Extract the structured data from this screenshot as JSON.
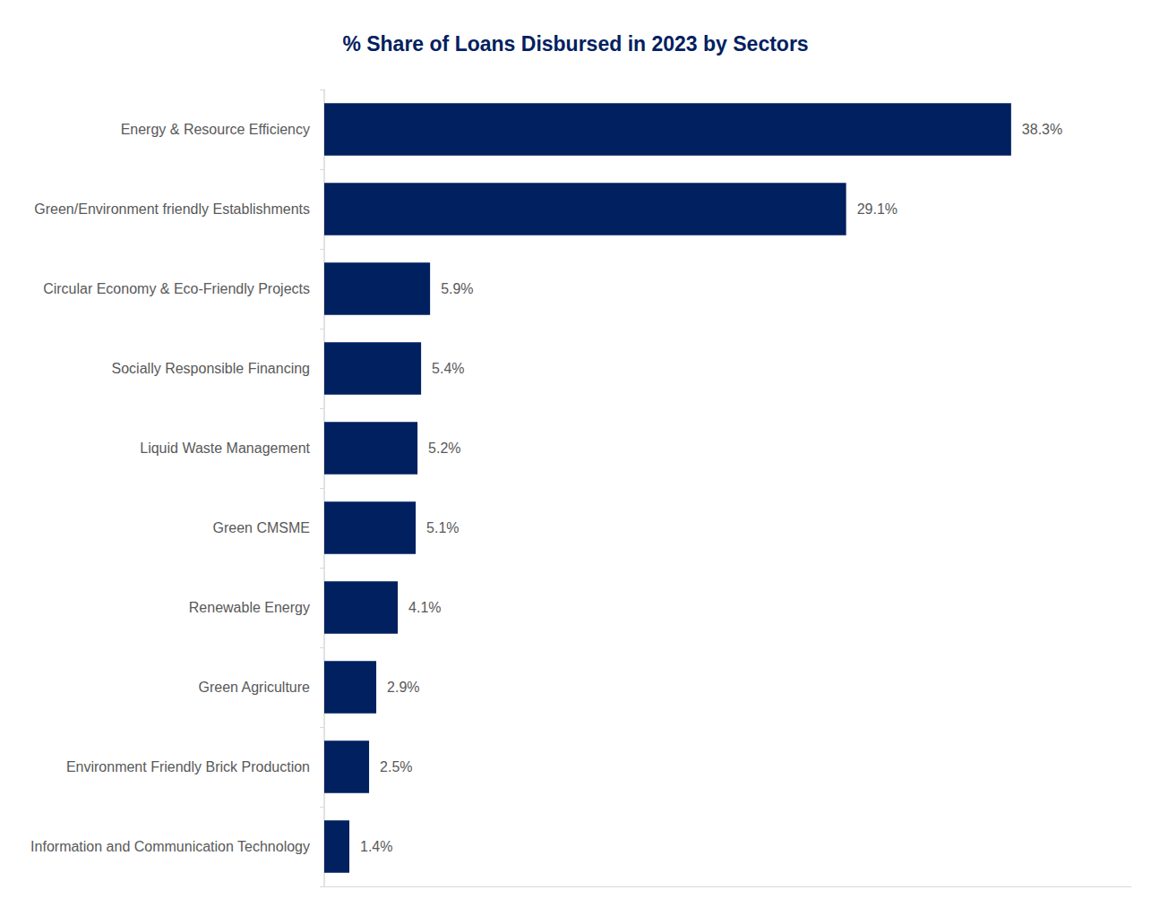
{
  "chart_data": {
    "type": "bar",
    "title": "% Share of Loans Disbursed in 2023 by Sectors",
    "orientation": "horizontal",
    "categories": [
      "Energy & Resource Efficiency",
      "Green/Environment friendly Establishments",
      "Circular Economy & Eco-Friendly Projects",
      "Socially Responsible Financing",
      "Liquid Waste Management",
      "Green CMSME",
      "Renewable Energy",
      "Green Agriculture",
      "Environment Friendly Brick Production",
      "Information and Communication Technology"
    ],
    "values": [
      38.3,
      29.1,
      5.9,
      5.4,
      5.2,
      5.1,
      4.1,
      2.9,
      2.5,
      1.4
    ],
    "value_labels": [
      "38.3%",
      "29.1%",
      "5.9%",
      "5.4%",
      "5.2%",
      "5.1%",
      "4.1%",
      "2.9%",
      "2.5%",
      "1.4%"
    ],
    "color": "#002060",
    "xlim": [
      0,
      45
    ],
    "grid": false,
    "data_labels": true,
    "tick_labels": "y"
  }
}
